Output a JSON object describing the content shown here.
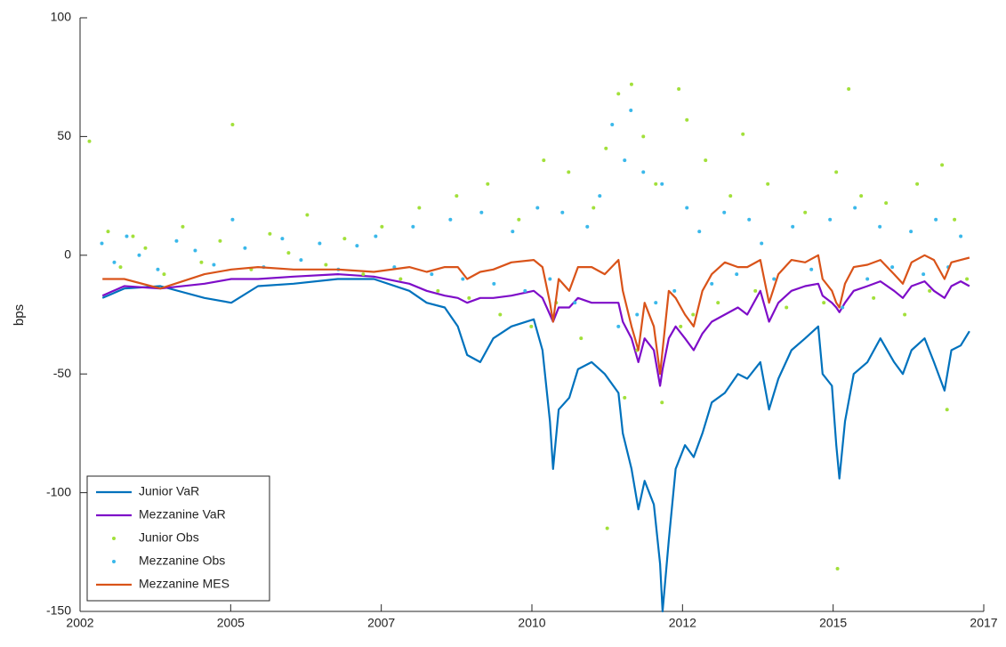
{
  "chart_data": {
    "type": "line",
    "ylabel": "bps",
    "xlim": [
      2002.95,
      2017.47
    ],
    "xticks": [
      {
        "value": 2002.95,
        "label": "2002"
      },
      {
        "value": 2005.37,
        "label": "2005"
      },
      {
        "value": 2007.79,
        "label": "2007"
      },
      {
        "value": 2010.21,
        "label": "2010"
      },
      {
        "value": 2012.63,
        "label": "2012"
      },
      {
        "value": 2015.05,
        "label": "2015"
      },
      {
        "value": 2017.47,
        "label": "2017"
      }
    ],
    "ylim": [
      -150,
      100
    ],
    "yticks": [
      -150,
      -100,
      -50,
      0,
      50,
      100
    ],
    "legend": "lower-left",
    "x": [
      2003.31,
      2003.66,
      2004.24,
      2004.95,
      2005.38,
      2005.81,
      2006.38,
      2007.09,
      2007.67,
      2008.24,
      2008.52,
      2008.81,
      2009.02,
      2009.17,
      2009.38,
      2009.59,
      2009.88,
      2010.24,
      2010.38,
      2010.5,
      2010.55,
      2010.64,
      2010.81,
      2010.95,
      2011.17,
      2011.38,
      2011.6,
      2011.67,
      2011.81,
      2011.92,
      2012.02,
      2012.17,
      2012.27,
      2012.31,
      2012.41,
      2012.52,
      2012.67,
      2012.81,
      2012.95,
      2013.1,
      2013.31,
      2013.52,
      2013.67,
      2013.88,
      2014.02,
      2014.17,
      2014.38,
      2014.6,
      2014.81,
      2014.88,
      2015.03,
      2015.1,
      2015.15,
      2015.24,
      2015.38,
      2015.6,
      2015.81,
      2016.03,
      2016.17,
      2016.31,
      2016.52,
      2016.67,
      2016.84,
      2016.95,
      2017.1,
      2017.24
    ],
    "series": [
      {
        "name": "Junior VaR",
        "style": "line",
        "color": "#0072bd",
        "values": [
          -18,
          -14,
          -13,
          -18,
          -20,
          -13,
          -12,
          -10,
          -10,
          -15,
          -20,
          -22,
          -30,
          -42,
          -45,
          -35,
          -30,
          -27,
          -40,
          -70,
          -90,
          -65,
          -60,
          -48,
          -45,
          -50,
          -58,
          -75,
          -90,
          -107,
          -95,
          -105,
          -130,
          -150,
          -120,
          -90,
          -80,
          -85,
          -75,
          -62,
          -58,
          -50,
          -52,
          -45,
          -65,
          -52,
          -40,
          -35,
          -30,
          -50,
          -55,
          -80,
          -94,
          -70,
          -50,
          -45,
          -35,
          -45,
          -50,
          -40,
          -35,
          -45,
          -57,
          -40,
          -38,
          -32
        ]
      },
      {
        "name": "Mezzanine VaR",
        "style": "line",
        "color": "#7e0dc8",
        "values": [
          -17,
          -13,
          -14,
          -12,
          -10,
          -10,
          -9,
          -8,
          -9,
          -12,
          -15,
          -17,
          -18,
          -20,
          -18,
          -18,
          -17,
          -15,
          -18,
          -25,
          -28,
          -22,
          -22,
          -18,
          -20,
          -20,
          -20,
          -28,
          -35,
          -45,
          -35,
          -40,
          -55,
          -48,
          -35,
          -30,
          -35,
          -40,
          -33,
          -28,
          -25,
          -22,
          -25,
          -15,
          -28,
          -20,
          -15,
          -13,
          -12,
          -17,
          -20,
          -22,
          -24,
          -20,
          -15,
          -13,
          -11,
          -15,
          -18,
          -13,
          -11,
          -15,
          -18,
          -13,
          -11,
          -13
        ]
      },
      {
        "name": "Junior Obs",
        "style": "dots",
        "color": "#a2e03a",
        "x": [
          2003.1,
          2003.4,
          2003.6,
          2003.8,
          2004.0,
          2004.3,
          2004.6,
          2004.9,
          2005.2,
          2005.4,
          2005.7,
          2006.0,
          2006.3,
          2006.6,
          2006.9,
          2007.2,
          2007.5,
          2007.8,
          2008.1,
          2008.4,
          2008.7,
          2009.0,
          2009.2,
          2009.5,
          2009.7,
          2010.0,
          2010.2,
          2010.4,
          2010.6,
          2010.8,
          2011.0,
          2011.2,
          2011.4,
          2011.42,
          2011.6,
          2011.7,
          2011.81,
          2011.9,
          2012.0,
          2012.2,
          2012.3,
          2012.57,
          2012.6,
          2012.7,
          2012.8,
          2013.0,
          2013.2,
          2013.4,
          2013.6,
          2013.8,
          2014.0,
          2014.3,
          2014.6,
          2014.9,
          2015.1,
          2015.12,
          2015.3,
          2015.5,
          2015.7,
          2015.9,
          2016.2,
          2016.4,
          2016.6,
          2016.8,
          2016.88,
          2017.0,
          2017.2
        ],
        "values": [
          48,
          10,
          -5,
          8,
          3,
          -8,
          12,
          -3,
          6,
          55,
          -6,
          9,
          1,
          17,
          -4,
          7,
          -8,
          12,
          -10,
          20,
          -15,
          25,
          -18,
          30,
          -25,
          15,
          -30,
          40,
          -20,
          35,
          -35,
          20,
          45,
          -115,
          68,
          -60,
          72,
          -40,
          50,
          30,
          -62,
          70,
          -30,
          57,
          -25,
          40,
          -20,
          25,
          51,
          -15,
          30,
          -22,
          18,
          -20,
          35,
          -132,
          70,
          25,
          -18,
          22,
          -25,
          30,
          -15,
          38,
          -65,
          15,
          -10
        ]
      },
      {
        "name": "Mezzanine Obs",
        "style": "dots",
        "color": "#3ab8ea",
        "x": [
          2003.3,
          2003.5,
          2003.7,
          2003.9,
          2004.2,
          2004.5,
          2004.8,
          2005.1,
          2005.4,
          2005.6,
          2005.9,
          2006.2,
          2006.5,
          2006.8,
          2007.1,
          2007.4,
          2007.7,
          2008.0,
          2008.3,
          2008.6,
          2008.9,
          2009.1,
          2009.4,
          2009.6,
          2009.9,
          2010.1,
          2010.3,
          2010.5,
          2010.7,
          2010.9,
          2011.1,
          2011.3,
          2011.5,
          2011.6,
          2011.7,
          2011.8,
          2011.9,
          2012.0,
          2012.2,
          2012.3,
          2012.5,
          2012.7,
          2012.9,
          2013.1,
          2013.3,
          2013.5,
          2013.7,
          2013.9,
          2014.1,
          2014.4,
          2014.7,
          2015.0,
          2015.2,
          2015.4,
          2015.6,
          2015.8,
          2016.0,
          2016.3,
          2016.5,
          2016.7,
          2016.9,
          2017.1
        ],
        "values": [
          5,
          -3,
          8,
          0,
          -6,
          6,
          2,
          -4,
          15,
          3,
          -5,
          7,
          -2,
          5,
          -6,
          4,
          8,
          -5,
          12,
          -8,
          15,
          -10,
          18,
          -12,
          10,
          -15,
          20,
          -10,
          18,
          -20,
          12,
          25,
          55,
          -30,
          40,
          61,
          -25,
          35,
          -20,
          30,
          -15,
          20,
          10,
          -12,
          18,
          -8,
          15,
          5,
          -10,
          12,
          -6,
          15,
          -22,
          20,
          -10,
          12,
          -5,
          10,
          -8,
          15,
          -5,
          8
        ]
      },
      {
        "name": "Mezzanine MES",
        "style": "line",
        "color": "#d95319",
        "values": [
          -10,
          -10,
          -14,
          -8,
          -6,
          -5,
          -6,
          -6,
          -7,
          -5,
          -7,
          -5,
          -5,
          -10,
          -7,
          -6,
          -3,
          -2,
          -5,
          -20,
          -28,
          -10,
          -15,
          -5,
          -5,
          -8,
          -2,
          -15,
          -30,
          -40,
          -20,
          -30,
          -50,
          -40,
          -15,
          -18,
          -25,
          -30,
          -15,
          -8,
          -3,
          -5,
          -5,
          -2,
          -20,
          -8,
          -2,
          -3,
          0,
          -10,
          -15,
          -20,
          -22,
          -12,
          -5,
          -4,
          -2,
          -8,
          -12,
          -3,
          0,
          -2,
          -10,
          -3,
          -2,
          -1
        ]
      }
    ]
  }
}
